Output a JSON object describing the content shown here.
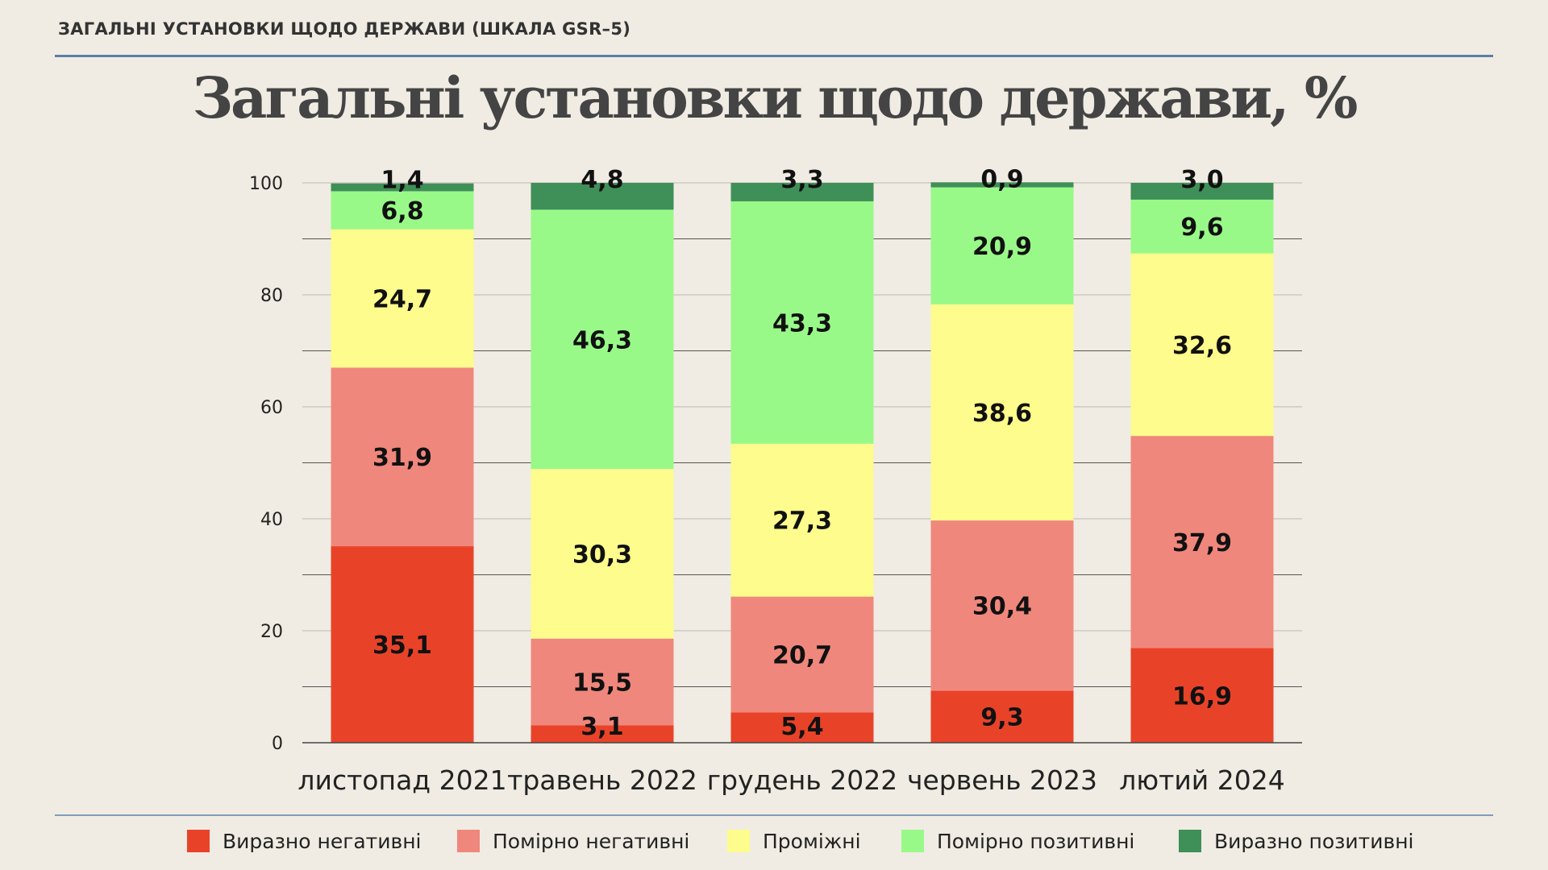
{
  "header": {
    "text": "ЗАГАЛЬНІ УСТАНОВКИ ЩОДО ДЕРЖАВИ (ШКАЛА GSR–5)"
  },
  "chart_data": {
    "type": "bar",
    "stacked": true,
    "title": "Загальні установки щодо держави, %",
    "categories": [
      "листопад 2021",
      "травень 2022",
      "грудень 2022",
      "червень 2023",
      "лютий 2024"
    ],
    "ylim": [
      0,
      100
    ],
    "yticks": [
      0,
      20,
      40,
      60,
      80,
      100
    ],
    "grid": true,
    "legend_position": "bottom",
    "series": [
      {
        "name": "Виразно негативні",
        "color": "#e84329",
        "values": [
          35.1,
          3.1,
          5.4,
          9.3,
          16.9
        ],
        "labels": [
          "35,1",
          "3,1",
          "5,4",
          "9,3",
          "16,9"
        ]
      },
      {
        "name": "Помірно негативні",
        "color": "#f0877c",
        "values": [
          31.9,
          15.5,
          20.7,
          30.4,
          37.9
        ],
        "labels": [
          "31,9",
          "15,5",
          "20,7",
          "30,4",
          "37,9"
        ]
      },
      {
        "name": "Проміжні",
        "color": "#fdfc8c",
        "values": [
          24.7,
          30.3,
          27.3,
          38.6,
          32.6
        ],
        "labels": [
          "24,7",
          "30,3",
          "27,3",
          "38,6",
          "32,6"
        ]
      },
      {
        "name": "Помірно позитивні",
        "color": "#99f988",
        "values": [
          6.8,
          46.3,
          43.3,
          20.9,
          9.6
        ],
        "labels": [
          "6,8",
          "46,3",
          "43,3",
          "20,9",
          "9,6"
        ]
      },
      {
        "name": "Виразно позитивні",
        "color": "#3f8f58",
        "values": [
          1.4,
          4.8,
          3.3,
          0.9,
          3.0
        ],
        "labels": [
          "1,4",
          "4,8",
          "3,3",
          "0,9",
          "3,0"
        ]
      }
    ]
  }
}
